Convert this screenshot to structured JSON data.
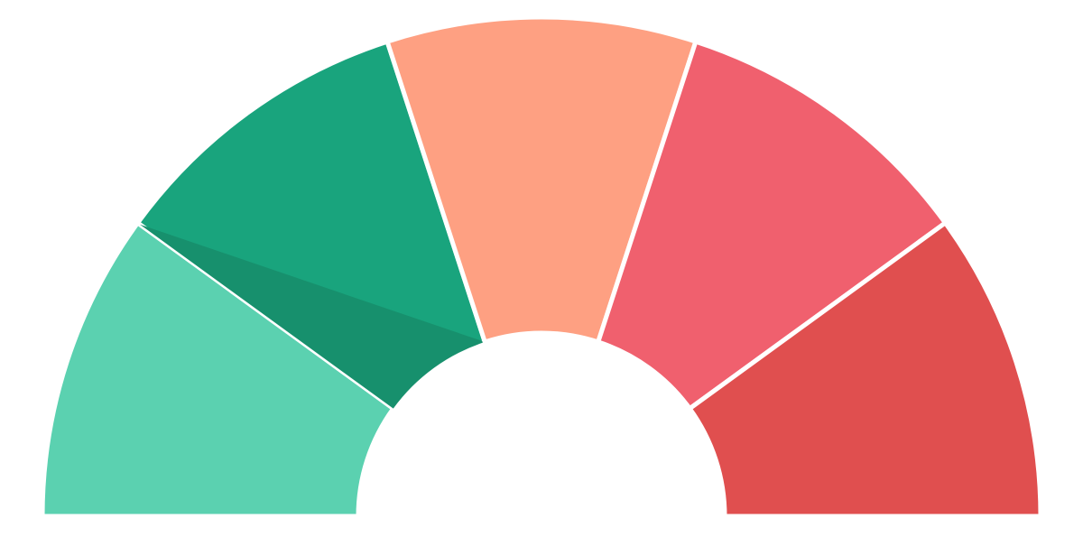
{
  "chart_data": {
    "type": "pie",
    "variant": "semicircle-gauge",
    "categories": [
      "",
      "",
      "",
      "",
      ""
    ],
    "values": [
      20,
      20,
      20,
      20,
      20
    ],
    "colors": [
      "#5bd1b0",
      "#19a47d",
      "#fea082",
      "#f0606e",
      "#e04f4f"
    ],
    "accent_colors": {
      "segment_1_inner_shade": "#17906d"
    },
    "title": "",
    "legend": "none"
  }
}
